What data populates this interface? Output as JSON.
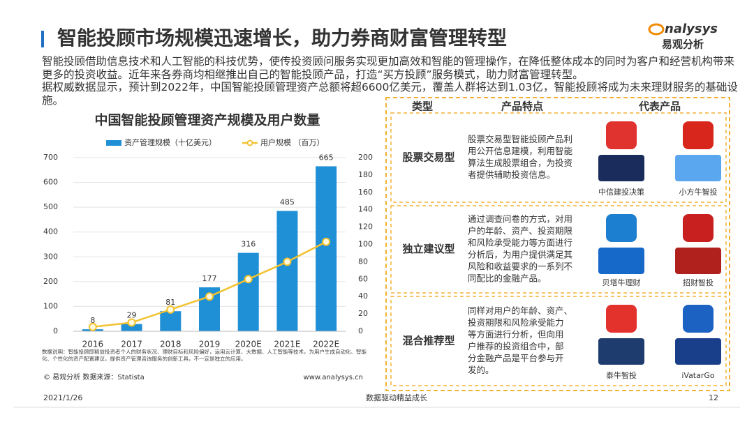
{
  "header": {
    "title": "智能投顾市场规模迅速增长，助力券商财富管理转型",
    "logo_en": "nalysys",
    "logo_cn": "易观分析"
  },
  "paragraphs": [
    "智能投顾借助信息技术和人工智能的科技优势，使传投资顾问服务实现更加高效和智能的管理操作，在降低整体成本的同时为客户和经营机构带来更多的投资收益。近年来各券商均相继推出自己的智能投顾产品，打造“买方投顾”服务模式，助力财富管理转型。",
    "据权威数据显示，预计到2022年，中国智能投顾管理资产总额将超6600亿美元，覆盖人群将达到1.03亿，智能投顾将成为未来理财服务的基础设施。"
  ],
  "chart_data": {
    "type": "combo",
    "title": "中国智能投顾管理资产规模及用户数量",
    "categories": [
      "2016",
      "2017",
      "2018",
      "2019",
      "2020E",
      "2021E",
      "2022E"
    ],
    "series": [
      {
        "name": "资产管理规模（十亿美元）",
        "type": "bar",
        "color": "#1f8fd6",
        "values": [
          8,
          29,
          81,
          177,
          316,
          485,
          665
        ]
      },
      {
        "name": "用户规模 （百万）",
        "type": "line",
        "axis": "y2",
        "color": "#f2c230",
        "values": [
          5,
          10,
          25,
          40,
          60,
          80,
          103
        ]
      }
    ],
    "ylim": [
      0,
      700
    ],
    "yticks": [
      0,
      100,
      200,
      300,
      400,
      500,
      600,
      700
    ],
    "y2lim": [
      0,
      200
    ],
    "y2ticks": [
      0,
      20,
      40,
      60,
      80,
      100,
      120,
      140,
      160,
      180,
      200
    ],
    "grid": true,
    "note": "数据说明：智能投顾即精益投资者个人的财务状况、理财目标和风险偏好，运用云计算、大数据、人工智能等技术，为用户生成自动化、智能化、个性化的资产配置建议，提供资产管理咨询服务的创新工具，不一定是独立的应用。",
    "source": "© 易观分析 数据来源：Statista",
    "site": "www.analysys.cn"
  },
  "table": {
    "headers": [
      "类型",
      "产品特点",
      "代表产品"
    ],
    "rows": [
      {
        "type": "股票交易型",
        "desc": [
          "股票交易型智能投顾产品利",
          "用公开信息建模，利用智能",
          "算法生成股票组合，为投资",
          "者提供辅助投资信息。"
        ],
        "products": [
          "中信建投决策",
          "小方牛智投"
        ]
      },
      {
        "type": "独立建议型",
        "desc": [
          "通过调查问卷的方式，对用",
          "户的年龄、资产、投资期限",
          "和风险承受能力等方面进行",
          "分析后，为用户提供满足其",
          "风险和收益要求的一系列不",
          "同配比的金融产品。"
        ],
        "products": [
          "贝塔牛理财",
          "招财智投"
        ]
      },
      {
        "type": "混合推荐型",
        "desc": [
          "同样对用户的年龄、资产、",
          "投资期限和风险承受能力",
          "等方面进行分析，但向用",
          "户推荐的投资组合中，部",
          "分金融产品是平台参与开",
          "发的。"
        ],
        "products": [
          "泰牛智投",
          "iVatarGo"
        ]
      }
    ]
  },
  "footer": {
    "date": "2021/1/26",
    "slogan": "数据驱动精益成长",
    "page": "12"
  }
}
